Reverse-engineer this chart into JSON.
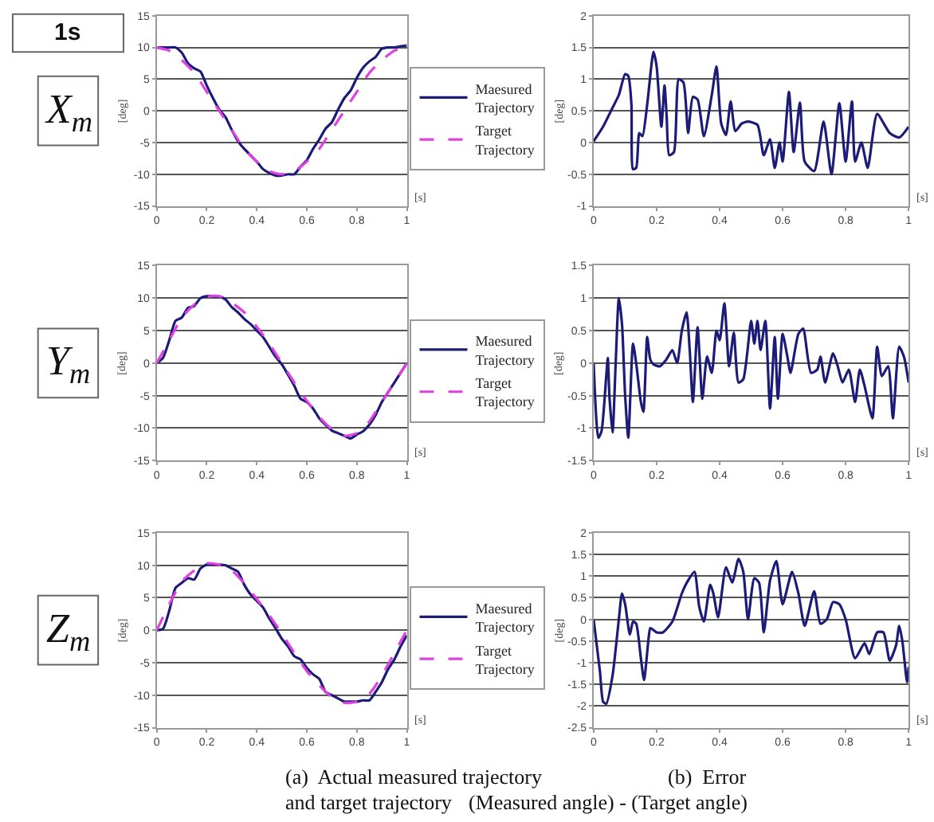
{
  "chart_data": [
    {
      "type": "line",
      "title": "X$_{m}$",
      "annotations": [
        "1s"
      ],
      "xlabel": "[s]",
      "ylabel": "[deg]",
      "xlim": [
        0,
        1
      ],
      "xticks": [
        0,
        0.2,
        0.4,
        0.6,
        0.8,
        1
      ],
      "ylim": [
        -15,
        15
      ],
      "yticks": [
        -15,
        -10,
        -5,
        0,
        5,
        10,
        15
      ],
      "grid": "y",
      "legend": "right",
      "series": [
        {
          "name": "Maesured Trajectory",
          "color": "#1c1c78",
          "x": [
            0,
            0.025,
            0.05,
            0.075,
            0.1,
            0.125,
            0.15,
            0.175,
            0.2,
            0.225,
            0.25,
            0.275,
            0.3,
            0.325,
            0.35,
            0.375,
            0.4,
            0.425,
            0.45,
            0.475,
            0.5,
            0.525,
            0.55,
            0.575,
            0.6,
            0.625,
            0.65,
            0.675,
            0.7,
            0.725,
            0.75,
            0.775,
            0.8,
            0.825,
            0.85,
            0.875,
            0.9,
            0.925,
            0.95,
            0.975,
            1
          ],
          "values": [
            10,
            10,
            10,
            10,
            9.2,
            7.5,
            6.7,
            6.2,
            4,
            2,
            0.2,
            -1,
            -3,
            -4.8,
            -6,
            -7,
            -8,
            -9.2,
            -9.8,
            -10.2,
            -10.2,
            -10,
            -10,
            -8.8,
            -7.8,
            -6,
            -4.5,
            -2.8,
            -1.8,
            0.2,
            2,
            3.2,
            5.2,
            6.8,
            7.8,
            8.5,
            9.8,
            10,
            10,
            10.2,
            10.3
          ]
        },
        {
          "name": "Target Trajectory",
          "color": "#e040e0",
          "line_style": "dashed",
          "x": [
            0,
            0.05,
            0.1,
            0.15,
            0.2,
            0.25,
            0.3,
            0.35,
            0.4,
            0.45,
            0.5,
            0.55,
            0.6,
            0.65,
            0.7,
            0.75,
            0.8,
            0.85,
            0.9,
            0.95,
            1
          ],
          "values": [
            10,
            9.5,
            8,
            6,
            3,
            0,
            -3,
            -6,
            -8,
            -9.5,
            -10,
            -9.5,
            -8,
            -6,
            -3,
            0,
            3,
            6,
            8,
            9.5,
            10
          ]
        }
      ]
    },
    {
      "type": "line",
      "xlabel": "[s]",
      "ylabel": "[deg]",
      "xlim": [
        0,
        1
      ],
      "xticks": [
        0,
        0.2,
        0.4,
        0.6,
        0.8,
        1
      ],
      "ylim": [
        -1,
        2
      ],
      "yticks": [
        -1,
        -0.5,
        0,
        0.5,
        1,
        1.5,
        2
      ],
      "grid": "y",
      "series": [
        {
          "color": "#1c1c78",
          "x": [
            0,
            0.03,
            0.06,
            0.08,
            0.1,
            0.11,
            0.12,
            0.125,
            0.135,
            0.145,
            0.155,
            0.17,
            0.19,
            0.2,
            0.215,
            0.225,
            0.232,
            0.24,
            0.255,
            0.27,
            0.285,
            0.3,
            0.315,
            0.33,
            0.35,
            0.375,
            0.39,
            0.405,
            0.42,
            0.435,
            0.45,
            0.47,
            0.49,
            0.52,
            0.54,
            0.56,
            0.575,
            0.59,
            0.6,
            0.62,
            0.635,
            0.655,
            0.67,
            0.7,
            0.73,
            0.755,
            0.78,
            0.8,
            0.82,
            0.83,
            0.85,
            0.87,
            0.9,
            0.94,
            0.97,
            1
          ],
          "values": [
            0.02,
            0.25,
            0.55,
            0.75,
            1.08,
            1.05,
            0.6,
            -0.42,
            -0.4,
            0.15,
            0.1,
            0.6,
            1.43,
            1.2,
            0.25,
            0.9,
            0.4,
            -0.2,
            -0.15,
            1,
            0.95,
            0.15,
            0.72,
            0.68,
            0.1,
            0.75,
            1.2,
            0.3,
            0.12,
            0.65,
            0.18,
            0.3,
            0.33,
            0.28,
            -0.2,
            0.05,
            -0.4,
            0,
            -0.3,
            0.8,
            -0.15,
            0.63,
            -0.3,
            -0.45,
            0.33,
            -0.5,
            0.62,
            -0.3,
            0.65,
            -0.3,
            0,
            -0.4,
            0.45,
            0.15,
            0.08,
            0.25
          ]
        }
      ]
    },
    {
      "type": "line",
      "title": "Y$_{m}$",
      "xlabel": "[s]",
      "ylabel": "[deg]",
      "xlim": [
        0,
        1
      ],
      "xticks": [
        0,
        0.2,
        0.4,
        0.6,
        0.8,
        1
      ],
      "ylim": [
        -15,
        15
      ],
      "yticks": [
        -15,
        -10,
        -5,
        0,
        5,
        10,
        15
      ],
      "grid": "y",
      "legend": "right",
      "series": [
        {
          "name": "Maesured Trajectory",
          "color": "#1c1c78",
          "x": [
            0,
            0.025,
            0.05,
            0.075,
            0.1,
            0.125,
            0.15,
            0.175,
            0.2,
            0.225,
            0.25,
            0.275,
            0.3,
            0.325,
            0.35,
            0.375,
            0.4,
            0.425,
            0.45,
            0.475,
            0.5,
            0.525,
            0.55,
            0.575,
            0.6,
            0.625,
            0.65,
            0.675,
            0.7,
            0.725,
            0.75,
            0.775,
            0.8,
            0.825,
            0.85,
            0.875,
            0.9,
            0.925,
            0.95,
            0.975,
            1
          ],
          "values": [
            0,
            0.8,
            3.5,
            6.5,
            7,
            8.5,
            8.8,
            10,
            10.3,
            10.3,
            10.2,
            9.8,
            8.6,
            7.8,
            6.8,
            6,
            5,
            4,
            2.5,
            1,
            -0.2,
            -1.8,
            -3.5,
            -5.5,
            -6,
            -7,
            -8.5,
            -9.5,
            -10.4,
            -10.8,
            -11.2,
            -11.6,
            -11,
            -10.5,
            -9.5,
            -8,
            -6,
            -4.5,
            -3,
            -1.5,
            0
          ]
        },
        {
          "name": "Target Trajectory",
          "color": "#e040e0",
          "line_style": "dashed",
          "x": [
            0,
            0.05,
            0.1,
            0.15,
            0.2,
            0.25,
            0.3,
            0.35,
            0.4,
            0.45,
            0.5,
            0.55,
            0.6,
            0.65,
            0.7,
            0.75,
            0.8,
            0.85,
            0.9,
            0.95,
            1
          ],
          "values": [
            0,
            3.5,
            7,
            9,
            10.2,
            10.3,
            9.3,
            7.8,
            5.6,
            3,
            0,
            -3,
            -5.8,
            -8.3,
            -10.2,
            -11.2,
            -10.8,
            -9,
            -6,
            -3,
            0
          ]
        }
      ]
    },
    {
      "type": "line",
      "xlabel": "[s]",
      "ylabel": "[deg]",
      "xlim": [
        0,
        1
      ],
      "xticks": [
        0,
        0.2,
        0.4,
        0.6,
        0.8,
        1
      ],
      "ylim": [
        -1.5,
        1.5
      ],
      "yticks": [
        -1.5,
        -1,
        -0.5,
        0,
        0.5,
        1,
        1.5
      ],
      "grid": "y",
      "series": [
        {
          "color": "#1c1c78",
          "x": [
            0,
            0.015,
            0.025,
            0.04,
            0.045,
            0.05,
            0.06,
            0.07,
            0.08,
            0.09,
            0.1,
            0.11,
            0.125,
            0.135,
            0.15,
            0.158,
            0.17,
            0.18,
            0.19,
            0.21,
            0.23,
            0.25,
            0.265,
            0.28,
            0.295,
            0.305,
            0.315,
            0.33,
            0.345,
            0.36,
            0.375,
            0.39,
            0.4,
            0.415,
            0.43,
            0.445,
            0.46,
            0.475,
            0.5,
            0.51,
            0.52,
            0.53,
            0.545,
            0.56,
            0.575,
            0.585,
            0.6,
            0.615,
            0.625,
            0.65,
            0.665,
            0.69,
            0.71,
            0.72,
            0.735,
            0.76,
            0.775,
            0.79,
            0.81,
            0.83,
            0.845,
            0.86,
            0.885,
            0.9,
            0.915,
            0.935,
            0.95,
            0.97,
            0.985,
            1
          ],
          "values": [
            0,
            -1.15,
            -1.05,
            -0.2,
            0.08,
            -0.5,
            -1.07,
            0,
            1,
            0.6,
            -0.5,
            -1.15,
            0.3,
            0,
            -0.6,
            -0.75,
            0.4,
            0.05,
            -0.02,
            -0.05,
            0.05,
            0.2,
            0,
            0.5,
            0.78,
            0.2,
            -0.6,
            0.55,
            -0.55,
            0.1,
            -0.15,
            0.5,
            0.35,
            0.92,
            -0.05,
            0.47,
            -0.3,
            -0.25,
            0.65,
            0.3,
            0.65,
            0.2,
            0.65,
            -0.7,
            0.4,
            -0.55,
            0.45,
            0.1,
            -0.15,
            0.45,
            0.53,
            -0.15,
            -0.1,
            0.1,
            -0.3,
            0.15,
            -0.05,
            -0.3,
            -0.1,
            -0.6,
            -0.1,
            -0.35,
            -0.85,
            0.25,
            -0.2,
            -0.05,
            -0.85,
            0.25,
            0.1,
            -0.3
          ]
        }
      ]
    },
    {
      "type": "line",
      "title": "Z$_{m}$",
      "annotations": [
        "(a)  Actual measured trajectory",
        "and target trajectory"
      ],
      "xlabel": "[s]",
      "ylabel": "[deg]",
      "xlim": [
        0,
        1
      ],
      "xticks": [
        0,
        0.2,
        0.4,
        0.6,
        0.8,
        1
      ],
      "ylim": [
        -15,
        15
      ],
      "yticks": [
        -15,
        -10,
        -5,
        0,
        5,
        10,
        15
      ],
      "grid": "y",
      "legend": "right",
      "series": [
        {
          "name": "Maesured Trajectory",
          "color": "#1c1c78",
          "x": [
            0,
            0.025,
            0.05,
            0.075,
            0.1,
            0.125,
            0.15,
            0.175,
            0.2,
            0.225,
            0.25,
            0.275,
            0.3,
            0.325,
            0.35,
            0.375,
            0.4,
            0.425,
            0.45,
            0.475,
            0.5,
            0.525,
            0.55,
            0.575,
            0.6,
            0.625,
            0.65,
            0.675,
            0.7,
            0.725,
            0.75,
            0.775,
            0.8,
            0.825,
            0.85,
            0.875,
            0.9,
            0.925,
            0.95,
            0.975,
            1
          ],
          "values": [
            0,
            0.2,
            3,
            6.5,
            7.3,
            8,
            7.8,
            9.5,
            10.1,
            10.1,
            10.1,
            10,
            9.5,
            9,
            7,
            5.5,
            4.5,
            3.5,
            1.8,
            0.3,
            -1.3,
            -2.5,
            -4,
            -4.5,
            -5.8,
            -6.8,
            -7.5,
            -9.5,
            -10,
            -10.5,
            -11,
            -11,
            -11,
            -10.8,
            -10.8,
            -9.5,
            -8,
            -6,
            -4.5,
            -2.5,
            -0.8
          ]
        },
        {
          "name": "Target Trajectory",
          "color": "#e040e0",
          "line_style": "dashed",
          "x": [
            0,
            0.05,
            0.1,
            0.15,
            0.2,
            0.25,
            0.3,
            0.35,
            0.4,
            0.45,
            0.5,
            0.55,
            0.6,
            0.65,
            0.7,
            0.75,
            0.8,
            0.85,
            0.9,
            0.95,
            1
          ],
          "values": [
            0,
            4,
            7.5,
            9.2,
            10.3,
            10.1,
            9.2,
            7.2,
            4.8,
            2.3,
            -0.5,
            -3.5,
            -6.3,
            -8.5,
            -10.3,
            -11.2,
            -11,
            -9.8,
            -7,
            -3.5,
            0
          ]
        }
      ]
    },
    {
      "type": "line",
      "annotations": [
        "(b)  Error",
        "(Measured angle) - (Target angle)"
      ],
      "xlabel": "[s]",
      "ylabel": "[deg]",
      "xlim": [
        0,
        1
      ],
      "xticks": [
        0,
        0.2,
        0.4,
        0.6,
        0.8,
        1
      ],
      "ylim": [
        -2.5,
        2
      ],
      "yticks": [
        -2.5,
        -2,
        -1.5,
        -1,
        -0.5,
        0,
        0.5,
        1,
        1.5,
        2
      ],
      "grid": "y",
      "series": [
        {
          "color": "#1c1c78",
          "x": [
            0,
            0.02,
            0.03,
            0.04,
            0.06,
            0.08,
            0.09,
            0.1,
            0.115,
            0.125,
            0.135,
            0.15,
            0.16,
            0.175,
            0.18,
            0.2,
            0.22,
            0.25,
            0.28,
            0.3,
            0.32,
            0.335,
            0.35,
            0.37,
            0.38,
            0.395,
            0.42,
            0.44,
            0.46,
            0.475,
            0.49,
            0.51,
            0.525,
            0.54,
            0.56,
            0.58,
            0.6,
            0.63,
            0.65,
            0.67,
            0.7,
            0.72,
            0.74,
            0.76,
            0.78,
            0.8,
            0.83,
            0.86,
            0.875,
            0.9,
            0.92,
            0.94,
            0.96,
            0.97,
            0.98,
            0.995,
            1
          ],
          "values": [
            0,
            -1.2,
            -1.9,
            -1.95,
            -1.3,
            0,
            0.6,
            0.35,
            -0.35,
            -0.05,
            -0.1,
            -0.9,
            -1.4,
            -0.4,
            -0.2,
            -0.3,
            -0.3,
            -0.05,
            0.6,
            0.9,
            1.1,
            0.3,
            -0.05,
            0.8,
            0.6,
            0.05,
            1.2,
            0.85,
            1.4,
            1.1,
            0,
            0.95,
            0.85,
            -0.3,
            0.9,
            1.35,
            0.35,
            1.1,
            0.6,
            -0.15,
            0.65,
            -0.1,
            0,
            0.4,
            0.35,
            0,
            -0.9,
            -0.55,
            -0.8,
            -0.3,
            -0.3,
            -0.95,
            -0.6,
            -0.15,
            -0.5,
            -1.45,
            -1.1
          ]
        }
      ]
    }
  ]
}
